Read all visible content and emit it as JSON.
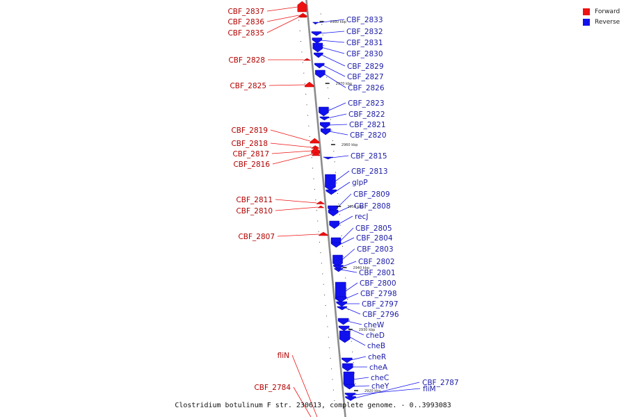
{
  "caption": "Clostridium botulinum F str. 230613, complete genome. - 0..3993083",
  "legend": [
    {
      "label": "Forward",
      "color": "#ee1111"
    },
    {
      "label": "Reverse",
      "color": "#1111ee"
    }
  ],
  "ticks": [
    "2980 kbp",
    "2970 kbp",
    "2960 kbp",
    "2950 kbp",
    "2940 kbp",
    "2930 kbp",
    "2920 kbp"
  ],
  "forward_genes": [
    "CBF_2837",
    "CBF_2836",
    "CBF_2835",
    "CBF_2828",
    "CBF_2825",
    "CBF_2819",
    "CBF_2818",
    "CBF_2817",
    "CBF_2816",
    "CBF_2811",
    "CBF_2810",
    "CBF_2807",
    "fliN",
    "CBF_2784"
  ],
  "reverse_genes": [
    "CBF_2833",
    "CBF_2832",
    "CBF_2831",
    "CBF_2830",
    "CBF_2829",
    "CBF_2827",
    "CBF_2826",
    "CBF_2823",
    "CBF_2822",
    "CBF_2821",
    "CBF_2820",
    "CBF_2815",
    "CBF_2813",
    "glpP",
    "CBF_2809",
    "CBF_2808",
    "recJ",
    "CBF_2805",
    "CBF_2804",
    "CBF_2803",
    "CBF_2802",
    "CBF_2801",
    "CBF_2800",
    "CBF_2798",
    "CBF_2797",
    "CBF_2796",
    "cheW",
    "cheD",
    "cheB",
    "cheR",
    "cheA",
    "cheC",
    "cheY",
    "fliM",
    "CBF_2787"
  ]
}
